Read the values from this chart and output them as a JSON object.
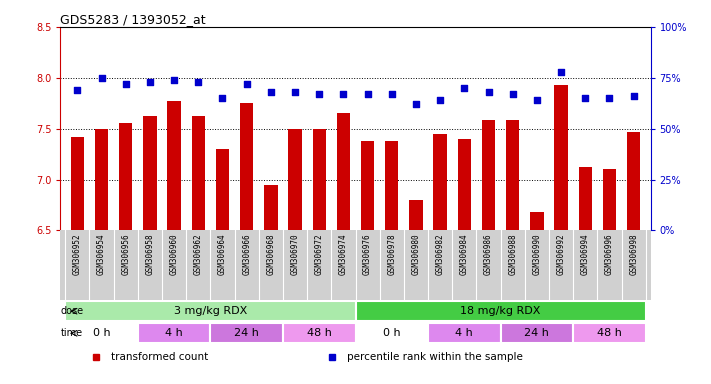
{
  "title": "GDS5283 / 1393052_at",
  "samples": [
    "GSM306952",
    "GSM306954",
    "GSM306956",
    "GSM306958",
    "GSM306960",
    "GSM306962",
    "GSM306964",
    "GSM306966",
    "GSM306968",
    "GSM306970",
    "GSM306972",
    "GSM306974",
    "GSM306976",
    "GSM306978",
    "GSM306980",
    "GSM306982",
    "GSM306984",
    "GSM306986",
    "GSM306988",
    "GSM306990",
    "GSM306992",
    "GSM306994",
    "GSM306996",
    "GSM306998"
  ],
  "transformed_count": [
    7.42,
    7.5,
    7.56,
    7.62,
    7.77,
    7.62,
    7.3,
    7.75,
    6.95,
    7.5,
    7.5,
    7.65,
    7.38,
    7.38,
    6.8,
    7.45,
    7.4,
    7.58,
    7.58,
    6.68,
    7.93,
    7.12,
    7.1,
    7.47
  ],
  "percentile_rank": [
    69,
    75,
    72,
    73,
    74,
    73,
    65,
    72,
    68,
    68,
    67,
    67,
    67,
    67,
    62,
    64,
    70,
    68,
    67,
    64,
    78,
    65,
    65,
    66
  ],
  "ylim_left": [
    6.5,
    8.5
  ],
  "ylim_right": [
    0,
    100
  ],
  "yticks_left": [
    6.5,
    7.0,
    7.5,
    8.0,
    8.5
  ],
  "yticks_right": [
    0,
    25,
    50,
    75,
    100
  ],
  "bar_color": "#cc0000",
  "dot_color": "#0000cc",
  "dose_groups": [
    {
      "label": "3 mg/kg RDX",
      "start": 0,
      "end": 12,
      "color": "#aaeaaa"
    },
    {
      "label": "18 mg/kg RDX",
      "start": 12,
      "end": 24,
      "color": "#44cc44"
    }
  ],
  "time_groups": [
    {
      "label": "0 h",
      "start": 0,
      "end": 3
    },
    {
      "label": "4 h",
      "start": 3,
      "end": 6
    },
    {
      "label": "24 h",
      "start": 6,
      "end": 9
    },
    {
      "label": "48 h",
      "start": 9,
      "end": 12
    },
    {
      "label": "0 h",
      "start": 12,
      "end": 15
    },
    {
      "label": "4 h",
      "start": 15,
      "end": 18
    },
    {
      "label": "24 h",
      "start": 18,
      "end": 21
    },
    {
      "label": "48 h",
      "start": 21,
      "end": 24
    }
  ],
  "time_colors": {
    "0 h": "#ffffff",
    "4 h": "#dd88ee",
    "24 h": "#cc77dd",
    "48 h": "#ee99ee"
  },
  "legend_items": [
    {
      "label": "transformed count",
      "color": "#cc0000"
    },
    {
      "label": "percentile rank within the sample",
      "color": "#0000cc"
    }
  ],
  "xtick_bg": "#d0d0d0",
  "plot_bg": "#ffffff"
}
